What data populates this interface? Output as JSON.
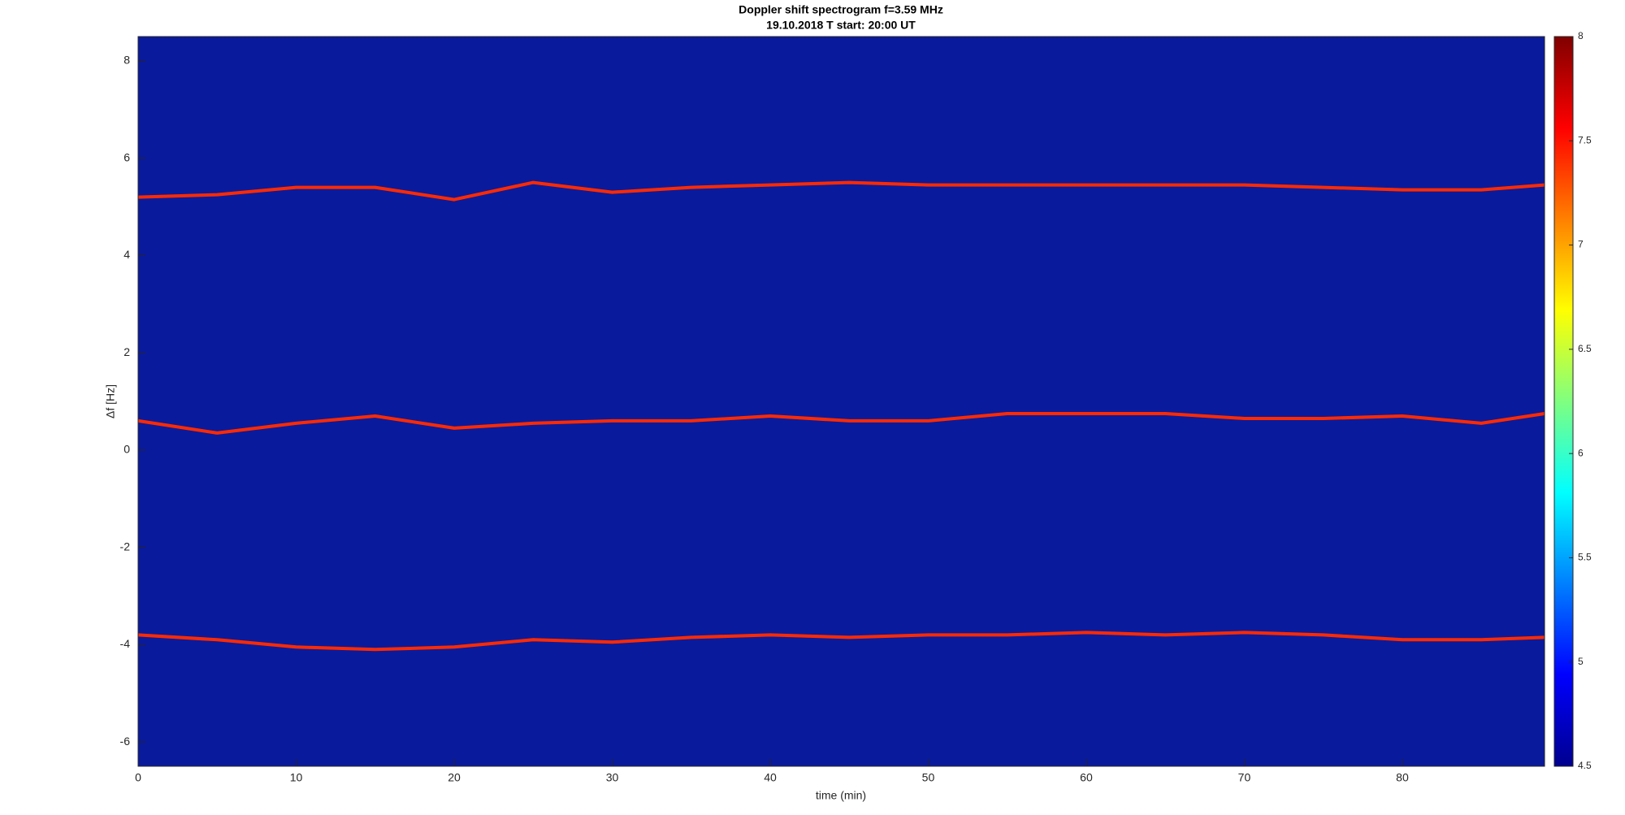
{
  "chart_data": {
    "type": "line",
    "title": "Doppler shift spectrogram f=3.59 MHz",
    "subtitle": "19.10.2018   T start: 20:00 UT",
    "x_label": "time (min)",
    "y_label": "Δf [Hz]",
    "x": [
      0,
      5,
      10,
      15,
      20,
      25,
      30,
      35,
      40,
      45,
      50,
      55,
      60,
      65,
      70,
      75,
      80,
      85,
      89
    ],
    "series": [
      {
        "color": "#ff2a00",
        "values": [
          5.2,
          5.25,
          5.4,
          5.4,
          5.15,
          5.5,
          5.3,
          5.4,
          5.45,
          5.5,
          5.45,
          5.45,
          5.45,
          5.45,
          5.45,
          5.4,
          5.35,
          5.35,
          5.45
        ]
      },
      {
        "color": "#ff2a00",
        "values": [
          0.6,
          0.35,
          0.55,
          0.7,
          0.45,
          0.55,
          0.6,
          0.6,
          0.7,
          0.6,
          0.6,
          0.75,
          0.75,
          0.75,
          0.65,
          0.65,
          0.7,
          0.55,
          0.75
        ]
      },
      {
        "color": "#ff2a00",
        "values": [
          -3.8,
          -3.9,
          -4.05,
          -4.1,
          -4.05,
          -3.9,
          -3.95,
          -3.85,
          -3.8,
          -3.85,
          -3.8,
          -3.8,
          -3.75,
          -3.8,
          -3.75,
          -3.8,
          -3.9,
          -3.9,
          -3.85
        ]
      }
    ],
    "xlim": [
      0,
      89
    ],
    "xticks": [
      0,
      10,
      20,
      30,
      40,
      50,
      60,
      70,
      80
    ],
    "ylim": [
      -6.5,
      8.5
    ],
    "yticks": [
      -6,
      -4,
      -2,
      0,
      2,
      4,
      6,
      8
    ],
    "background": "#0a1a9c",
    "grid": false,
    "colorbar": {
      "colormap": "jet",
      "lim": [
        4.5,
        8
      ],
      "ticks": [
        4.5,
        5,
        5.5,
        6,
        6.5,
        7,
        7.5,
        8
      ]
    }
  }
}
